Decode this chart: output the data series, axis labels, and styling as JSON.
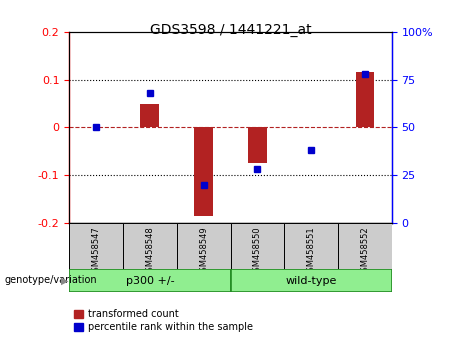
{
  "title": "GDS3598 / 1441221_at",
  "samples": [
    "GSM458547",
    "GSM458548",
    "GSM458549",
    "GSM458550",
    "GSM458551",
    "GSM458552"
  ],
  "bar_values": [
    0.0,
    0.05,
    -0.185,
    -0.075,
    0.0,
    0.115
  ],
  "dot_values_pct": [
    50,
    68,
    20,
    28,
    38,
    78
  ],
  "bar_color": "#b22222",
  "dot_color": "#0000cc",
  "ylim_left": [
    -0.2,
    0.2
  ],
  "ylim_right": [
    0,
    100
  ],
  "yticks_left": [
    -0.2,
    -0.1,
    0.0,
    0.1,
    0.2
  ],
  "ytick_labels_left": [
    "-0.2",
    "-0.1",
    "0",
    "0.1",
    "0.2"
  ],
  "yticks_right": [
    0,
    25,
    50,
    75,
    100
  ],
  "ytick_labels_right": [
    "0",
    "25",
    "50",
    "75",
    "100%"
  ],
  "dotted_lines": [
    -0.1,
    0.0,
    0.1
  ],
  "dotted_colors": [
    "black",
    "#cc0000",
    "black"
  ],
  "dotted_styles": [
    ":",
    "--",
    ":"
  ],
  "group1_label": "p300 +/-",
  "group2_label": "wild-type",
  "group_color": "#90ee90",
  "group_border_color": "#228B22",
  "sample_bg_color": "#cccccc",
  "legend_items": [
    {
      "label": "transformed count",
      "color": "#b22222"
    },
    {
      "label": "percentile rank within the sample",
      "color": "#0000cc"
    }
  ],
  "arrow_label": "genotype/variation",
  "title_fontsize": 10,
  "axis_fontsize": 8,
  "label_fontsize": 7,
  "legend_fontsize": 7
}
